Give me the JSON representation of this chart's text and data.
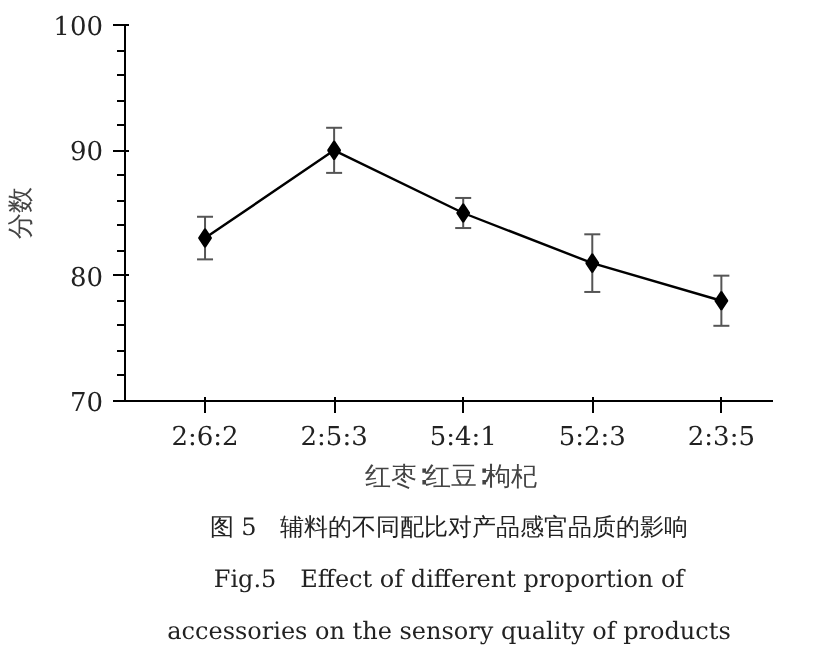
{
  "chart_data": {
    "type": "line",
    "categories": [
      "2:6:2",
      "2:5:3",
      "5:4:1",
      "5:2:3",
      "2:3:5"
    ],
    "values": [
      83,
      90,
      85,
      81,
      78
    ],
    "errors": [
      1.7,
      1.8,
      1.2,
      2.3,
      2.0
    ],
    "color": "#000000",
    "marker": "diamond",
    "line_style": "solid",
    "xlabel": "红枣∶红豆∶枸杞",
    "ylabel": "分数",
    "ylim": [
      70,
      100
    ],
    "yticks": [
      70,
      {
        "value": 72,
        "label": null
      },
      {
        "value": 74,
        "label": null
      },
      {
        "value": 76,
        "label": null
      },
      {
        "value": 78,
        "label": null
      },
      80,
      {
        "value": 82,
        "label": null
      },
      {
        "value": 84,
        "label": null
      },
      {
        "value": 86,
        "label": null
      },
      {
        "value": 88,
        "label": null
      },
      90,
      {
        "value": 92,
        "label": null
      },
      {
        "value": 94,
        "label": null
      },
      {
        "value": 96,
        "label": null
      },
      {
        "value": 98,
        "label": null
      },
      100
    ],
    "grid": false,
    "annotations": [
      "图 5　辅料的不同配比对产品感官品质的影响",
      "Fig.5　Effect of different proportion of",
      "accessories on the sensory quality of products"
    ]
  }
}
